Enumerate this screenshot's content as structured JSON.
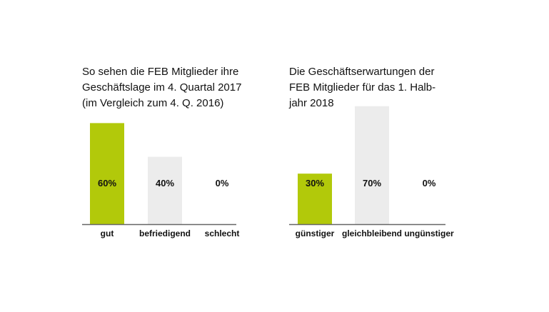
{
  "chart_data": [
    {
      "type": "bar",
      "title": "So sehen die FEB Mitglieder ihre\nGeschäftslage im 4. Quartal 2017\n(im Vergleich zum 4. Q. 2016)",
      "categories": [
        "gut",
        "befriedigend",
        "schlecht"
      ],
      "values": [
        60,
        40,
        0
      ],
      "value_labels": [
        "60%",
        "40%",
        "0%"
      ],
      "colors": [
        "#b2c90a",
        "#ececec",
        "#ececec"
      ],
      "ylim": [
        0,
        100
      ],
      "grid": false
    },
    {
      "type": "bar",
      "title": "Die Geschäftserwartungen der\nFEB Mitglieder für das 1. Halb-\njahr 2018",
      "categories": [
        "günstiger",
        "gleichbleibend",
        "ungünstiger"
      ],
      "values": [
        30,
        70,
        0
      ],
      "value_labels": [
        "30%",
        "70%",
        "0%"
      ],
      "colors": [
        "#b2c90a",
        "#ececec",
        "#ececec"
      ],
      "ylim": [
        0,
        100
      ],
      "grid": false
    }
  ]
}
